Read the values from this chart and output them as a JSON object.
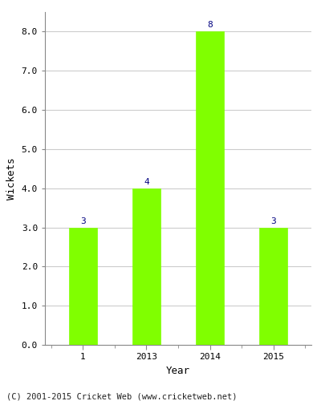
{
  "categories": [
    "1",
    "2013",
    "2014",
    "2015"
  ],
  "values": [
    3,
    4,
    8,
    3
  ],
  "bar_color": "#80FF00",
  "bar_edge_color": "#80FF00",
  "annotation_color": "#000080",
  "ylabel": "Wickets",
  "xlabel": "Year",
  "ylim": [
    0,
    8.5
  ],
  "yticks": [
    0.0,
    1.0,
    2.0,
    3.0,
    4.0,
    5.0,
    6.0,
    7.0,
    8.0
  ],
  "annotation_fontsize": 8,
  "axis_label_fontsize": 9,
  "tick_fontsize": 8,
  "footer": "(C) 2001-2015 Cricket Web (www.cricketweb.net)",
  "footer_fontsize": 7.5,
  "background_color": "#ffffff",
  "grid_color": "#cccccc",
  "spine_color": "#888888"
}
